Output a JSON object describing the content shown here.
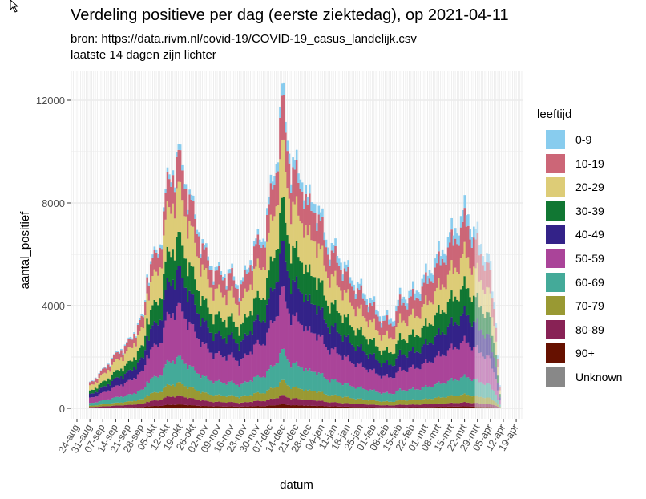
{
  "chart_data": {
    "type": "bar",
    "stacked": true,
    "title": "Verdeling positieve per dag (eerste ziektedag), op 2021-04-11",
    "subtitle_lines": [
      "bron: https://data.rivm.nl/covid-19/COVID-19_casus_landelijk.csv",
      "laatste 14 dagen zijn lichter"
    ],
    "xlabel": "datum",
    "ylabel": "aantal_positief",
    "ylim": [
      0,
      12900
    ],
    "yticks": [
      0,
      4000,
      8000,
      12000
    ],
    "ytick_labels": [
      "0",
      "4000",
      "8000",
      "12000"
    ],
    "xtick_labels": [
      "24-aug",
      "31-aug",
      "07-sep",
      "14-sep",
      "21-sep",
      "28-sep",
      "05-okt",
      "12-okt",
      "19-okt",
      "26-okt",
      "02-nov",
      "09-nov",
      "16-nov",
      "23-nov",
      "30-nov",
      "07-dec",
      "14-dec",
      "21-dec",
      "28-dec",
      "04-jan",
      "11-jan",
      "18-jan",
      "25-jan",
      "01-feb",
      "08-feb",
      "15-feb",
      "22-feb",
      "01-mrt",
      "08-mrt",
      "15-mrt",
      "22-mrt",
      "29-mrt",
      "05-apr",
      "12-apr",
      "19-apr"
    ],
    "x_start": "2020-08-24",
    "data_start": "2020-08-31",
    "data_end": "2021-04-10",
    "lighter_last_days": 14,
    "legend_title": "leeftijd",
    "legend_position": "right",
    "series": [
      {
        "name": "0-9",
        "color": "#88CCEE"
      },
      {
        "name": "10-19",
        "color": "#CC6677"
      },
      {
        "name": "20-29",
        "color": "#DDCC77"
      },
      {
        "name": "30-39",
        "color": "#117733"
      },
      {
        "name": "40-49",
        "color": "#332288"
      },
      {
        "name": "50-59",
        "color": "#AA4499"
      },
      {
        "name": "60-69",
        "color": "#44AA99"
      },
      {
        "name": "70-79",
        "color": "#999933"
      },
      {
        "name": "80-89",
        "color": "#882255"
      },
      {
        "name": "90+",
        "color": "#661100"
      },
      {
        "name": "Unknown",
        "color": "#888888"
      }
    ],
    "age_shares_autumn": [
      0.02,
      0.12,
      0.19,
      0.13,
      0.14,
      0.2,
      0.1,
      0.05,
      0.035,
      0.015,
      0.0
    ],
    "age_shares_spring": [
      0.06,
      0.16,
      0.16,
      0.14,
      0.14,
      0.18,
      0.09,
      0.04,
      0.02,
      0.01,
      0.0
    ],
    "daily_total_estimates": [
      [
        "2020-08-31",
        1000
      ],
      [
        "2020-09-07",
        1500
      ],
      [
        "2020-09-16",
        2300
      ],
      [
        "2020-09-20",
        2500
      ],
      [
        "2020-09-27",
        3400
      ],
      [
        "2020-09-29",
        3600
      ],
      [
        "2020-10-01",
        5300
      ],
      [
        "2020-10-08",
        6500
      ],
      [
        "2020-10-12",
        8900
      ],
      [
        "2020-10-18",
        10000
      ],
      [
        "2020-10-25",
        8100
      ],
      [
        "2020-11-01",
        6200
      ],
      [
        "2020-11-07",
        5400
      ],
      [
        "2020-11-16",
        5300
      ],
      [
        "2020-11-20",
        4800
      ],
      [
        "2020-11-22",
        5000
      ],
      [
        "2020-11-28",
        6400
      ],
      [
        "2020-12-03",
        6800
      ],
      [
        "2020-12-10",
        9800
      ],
      [
        "2020-12-13",
        12400
      ],
      [
        "2020-12-18",
        9700
      ],
      [
        "2020-12-25",
        9000
      ],
      [
        "2020-12-27",
        8100
      ],
      [
        "2020-12-31",
        8250
      ],
      [
        "2021-01-07",
        6500
      ],
      [
        "2021-01-14",
        5900
      ],
      [
        "2021-01-20",
        5100
      ],
      [
        "2021-01-29",
        4350
      ],
      [
        "2021-02-06",
        3550
      ],
      [
        "2021-02-11",
        3550
      ],
      [
        "2021-02-15",
        4350
      ],
      [
        "2021-02-24",
        4650
      ],
      [
        "2021-03-07",
        5900
      ],
      [
        "2021-03-15",
        6850
      ],
      [
        "2021-03-23",
        7800
      ],
      [
        "2021-03-28",
        6850
      ],
      [
        "2021-04-04",
        5900
      ],
      [
        "2021-04-08",
        3550
      ],
      [
        "2021-04-10",
        900
      ]
    ]
  }
}
